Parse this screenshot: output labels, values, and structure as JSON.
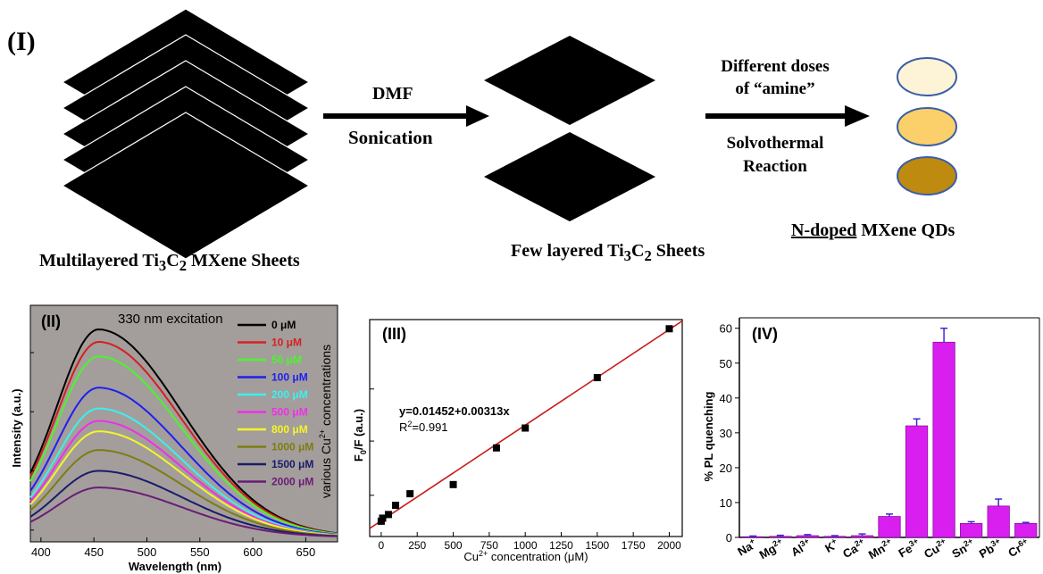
{
  "scheme": {
    "label": "(I)",
    "step1": {
      "top": "DMF",
      "bottom": "Sonication"
    },
    "step2": {
      "top_line1": "Different doses",
      "top_line2": "of “amine”",
      "bottom_line1": "Solvothermal",
      "bottom_line2": "Reaction"
    },
    "caption_multi": {
      "pre": "Multilayered Ti",
      "s1": "3",
      "mid": "C",
      "s2": "2",
      "post": " MXene Sheets"
    },
    "caption_few": {
      "pre": "Few layered Ti",
      "s1": "3",
      "mid": "C",
      "s2": "2",
      "post": " Sheets"
    },
    "caption_qd": {
      "underlined": "N-doped",
      "rest": " MXene QDs"
    },
    "qd_colors": [
      "#fdf3d6",
      "#fbd06a",
      "#bf8a10"
    ],
    "sheet_color": "#000000"
  },
  "chart_data": [
    {
      "panel": "(II)",
      "type": "line",
      "annotation": "330 nm excitation",
      "side_label": {
        "pre": "various Cu",
        "sup": "2+",
        "post": " concentrations"
      },
      "xlabel": "Wavelength (nm)",
      "ylabel": "Intensity (a.u.)",
      "xlim": [
        390,
        680
      ],
      "x_ticks": [
        400,
        450,
        500,
        550,
        600,
        650
      ],
      "peak_x": 455,
      "background": "#a39e9c",
      "series": [
        {
          "name": "0 μM",
          "peak": 1.0,
          "color": "#000000"
        },
        {
          "name": "10 μM",
          "peak": 0.94,
          "color": "#d42020"
        },
        {
          "name": "50 μM",
          "peak": 0.87,
          "color": "#4cf52a"
        },
        {
          "name": "100 μM",
          "peak": 0.72,
          "color": "#1f1ff0"
        },
        {
          "name": "200 μM",
          "peak": 0.62,
          "color": "#3cf0ef"
        },
        {
          "name": "500 μM",
          "peak": 0.56,
          "color": "#f02fe8"
        },
        {
          "name": "800 μM",
          "peak": 0.51,
          "color": "#f5f527"
        },
        {
          "name": "1000 μM",
          "peak": 0.42,
          "color": "#7d7d10"
        },
        {
          "name": "1500 μM",
          "peak": 0.32,
          "color": "#1b1b6b"
        },
        {
          "name": "2000 μM",
          "peak": 0.24,
          "color": "#6b1b76"
        }
      ]
    },
    {
      "panel": "(III)",
      "type": "scatter",
      "xlabel": {
        "pre": "Cu",
        "sup": "2+",
        "post": " concentration (μM)"
      },
      "ylabel": {
        "pre": "F",
        "sub": "0",
        "post": "/F (a.u.)"
      },
      "equation": "y=0.01452+0.00313x",
      "r2": {
        "pre": "R",
        "sup": "2",
        "post": "=0.991"
      },
      "xlim": [
        -80,
        2090
      ],
      "x_ticks": [
        0,
        250,
        500,
        750,
        1000,
        1250,
        1500,
        1750,
        2000
      ],
      "ylim": [
        -0.5,
        6.6
      ],
      "fit": {
        "intercept": 0.01452,
        "slope": 0.00313
      },
      "points": [
        [
          0,
          0.0
        ],
        [
          10,
          0.1
        ],
        [
          50,
          0.22
        ],
        [
          100,
          0.52
        ],
        [
          200,
          0.9
        ],
        [
          500,
          1.2
        ],
        [
          800,
          2.4
        ],
        [
          1000,
          3.05
        ],
        [
          1500,
          4.7
        ],
        [
          2000,
          6.3
        ]
      ],
      "fit_color": "#c81e1e"
    },
    {
      "panel": "(IV)",
      "type": "bar",
      "ylabel": "% PL quenching",
      "ylim": [
        0,
        63
      ],
      "y_ticks": [
        0,
        10,
        20,
        30,
        40,
        50,
        60
      ],
      "bar_color": "#d81ff0",
      "error_color": "#3a2ad8",
      "categories": [
        {
          "base": "Na",
          "sup": "+"
        },
        {
          "base": "Mg",
          "sup": "2+"
        },
        {
          "base": "Al",
          "sup": "3+"
        },
        {
          "base": "K",
          "sup": "+"
        },
        {
          "base": "Ca",
          "sup": "2+"
        },
        {
          "base": "Mn",
          "sup": "2+"
        },
        {
          "base": "Fe",
          "sup": "3+"
        },
        {
          "base": "Cu",
          "sup": "2+"
        },
        {
          "base": "Sn",
          "sup": "2+"
        },
        {
          "base": "Pb",
          "sup": "3+"
        },
        {
          "base": "Cr",
          "sup": "6+"
        }
      ],
      "values": [
        0.2,
        0.3,
        0.5,
        0.3,
        0.5,
        6.0,
        32.0,
        56.0,
        4.0,
        9.0,
        4.0
      ],
      "errors": [
        0.2,
        0.3,
        0.3,
        0.2,
        0.5,
        0.7,
        2.0,
        4.0,
        0.5,
        2.0,
        0.3
      ]
    }
  ]
}
